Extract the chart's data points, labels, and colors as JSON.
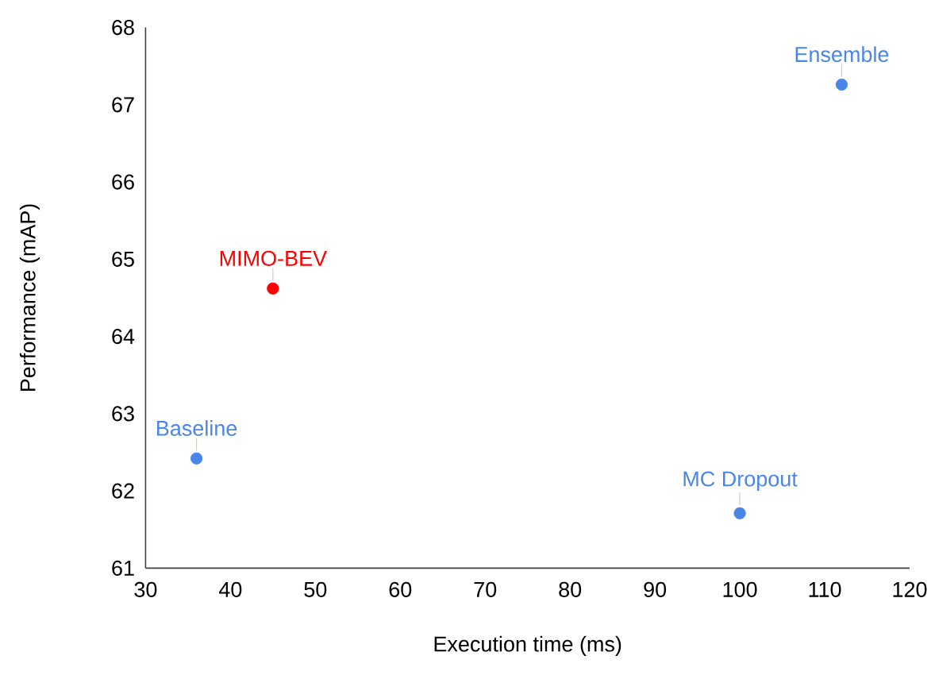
{
  "chart_data": {
    "type": "scatter",
    "xlabel": "Execution time (ms)",
    "ylabel": "Performance (mAP)",
    "xlim": [
      30,
      120
    ],
    "ylim": [
      61,
      68
    ],
    "xticks": [
      30,
      40,
      50,
      60,
      70,
      80,
      90,
      100,
      110,
      120
    ],
    "yticks": [
      61,
      62,
      63,
      64,
      65,
      66,
      67,
      68
    ],
    "marker": "circle",
    "series": [
      {
        "name": "Baseline",
        "color": "#4a86e8",
        "x": [
          36
        ],
        "values": [
          62.42
        ]
      },
      {
        "name": "MIMO-BEV",
        "color": "#ff0000",
        "x": [
          45
        ],
        "values": [
          64.62
        ]
      },
      {
        "name": "Ensemble",
        "color": "#4a86e8",
        "x": [
          112
        ],
        "values": [
          67.26
        ]
      },
      {
        "name": "MC Dropout",
        "color": "#4a86e8",
        "x": [
          100
        ],
        "values": [
          61.71
        ]
      }
    ]
  }
}
